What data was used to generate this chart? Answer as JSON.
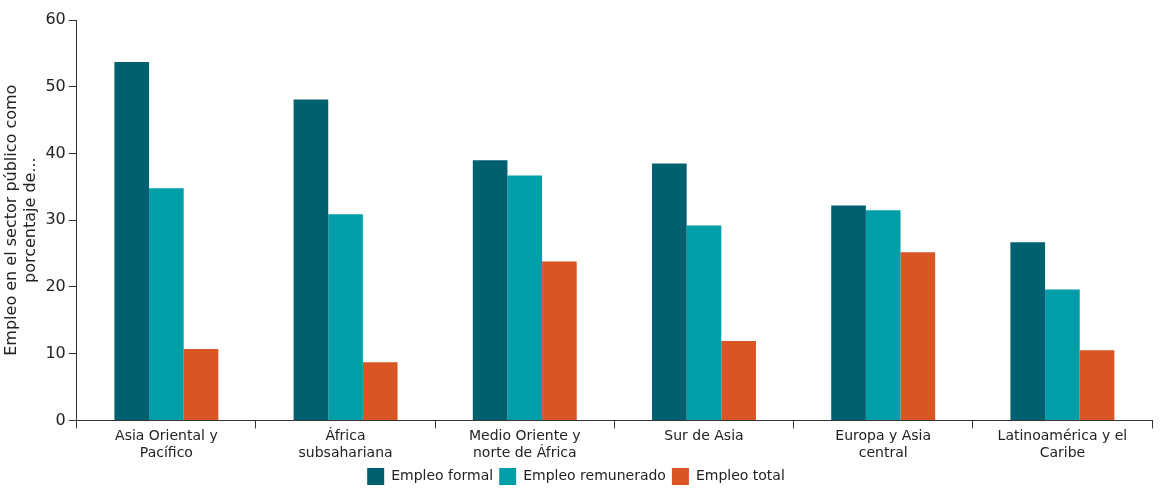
{
  "chart_data": {
    "type": "bar",
    "ylabel": "Empleo en el sector público como porcentaje de...",
    "categories": [
      "Asia Oriental y Pacífico",
      "África subsahariana",
      "Medio Oriente y norte de África",
      "Sur de Asia",
      "Europa y Asia central",
      "Latinoamérica y el Caribe"
    ],
    "series": [
      {
        "name": "Empleo formal",
        "color": "#00606f",
        "values": [
          53.7,
          48.1,
          39.0,
          38.5,
          32.2,
          26.7
        ]
      },
      {
        "name": "Empleo remunerado",
        "color": "#009ea9",
        "values": [
          34.8,
          30.9,
          36.7,
          29.2,
          31.5,
          19.6
        ]
      },
      {
        "name": "Empleo total",
        "color": "#d95523",
        "values": [
          10.7,
          8.7,
          23.8,
          11.9,
          25.2,
          10.5
        ]
      }
    ],
    "ylim": [
      0,
      60
    ],
    "yticks": [
      0,
      10,
      20,
      30,
      40,
      50,
      60
    ],
    "grid": false,
    "legend": "bottom"
  }
}
